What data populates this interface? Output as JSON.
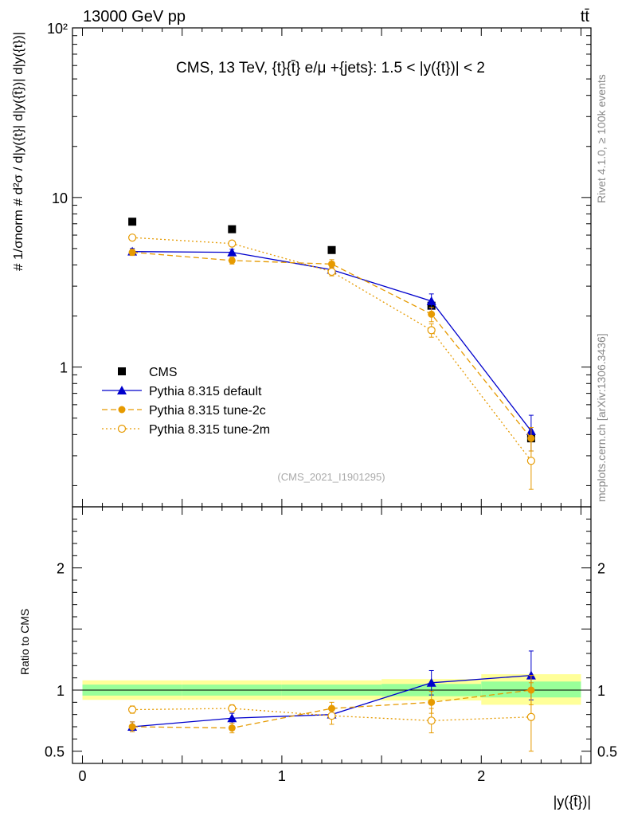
{
  "header": {
    "energy_label": "13000 GeV pp",
    "process_label": "tt̄"
  },
  "side": {
    "rivet_label": "Rivet 4.1.0, ≥ 100k events",
    "source_label": "mcplots.cern.ch [arXiv:1306.3436]"
  },
  "chart_data": [
    {
      "type": "line",
      "panel": "main",
      "title": "CMS, 13 TeV, {t}{t̄} e/μ +{jets}: 1.5 < |y({t})| < 2",
      "analysis_id": "(CMS_2021_I1901295)",
      "ylabel": "# 1/σnorm # d²σ / d|y({t}| d|y({t̄})| d|y({t})|",
      "yscale": "log",
      "ylim": [
        0.15,
        100
      ],
      "xlim": [
        -0.05,
        2.55
      ],
      "ytick_labels": [
        {
          "value": 1,
          "label": "1"
        },
        {
          "value": 10,
          "label": "10"
        },
        {
          "value": 100,
          "label": "10²"
        }
      ],
      "legend": [
        {
          "name": "CMS",
          "marker": "square",
          "color": "#000000",
          "line": "none"
        },
        {
          "name": "Pythia 8.315 default",
          "marker": "triangle",
          "color": "#0000cc",
          "line": "solid"
        },
        {
          "name": "Pythia 8.315 tune-2c",
          "marker": "circle",
          "color": "#e69a00",
          "line": "dashed"
        },
        {
          "name": "Pythia 8.315 tune-2m",
          "marker": "open-circle",
          "color": "#e69a00",
          "line": "dotted"
        }
      ],
      "x": [
        0.25,
        0.75,
        1.25,
        1.75,
        2.25
      ],
      "series": [
        {
          "name": "CMS",
          "values": [
            7.2,
            6.5,
            4.9,
            2.3,
            0.38
          ],
          "err": [
            0,
            0,
            0,
            0,
            0
          ]
        },
        {
          "name": "Pythia 8.315 default",
          "values": [
            4.8,
            4.75,
            3.75,
            2.45,
            0.42
          ],
          "err": [
            0.2,
            0.2,
            0.15,
            0.25,
            0.1
          ]
        },
        {
          "name": "Pythia 8.315 tune-2c",
          "values": [
            4.75,
            4.25,
            4.05,
            2.05,
            0.38
          ],
          "err": [
            0.2,
            0.2,
            0.25,
            0.2,
            0.06
          ]
        },
        {
          "name": "Pythia 8.315 tune-2m",
          "values": [
            5.8,
            5.35,
            3.65,
            1.65,
            0.28
          ],
          "err": [
            0.15,
            0.2,
            0.2,
            0.15,
            0.09
          ]
        }
      ]
    },
    {
      "type": "line",
      "panel": "ratio",
      "ylabel": "Ratio to CMS",
      "xlabel": "|y({t̄})|",
      "ylim": [
        0.4,
        2.5
      ],
      "xlim": [
        -0.05,
        2.55
      ],
      "xtick_labels": [
        {
          "value": 0,
          "label": "0"
        },
        {
          "value": 1,
          "label": "1"
        },
        {
          "value": 2,
          "label": "2"
        }
      ],
      "ytick_labels": [
        {
          "value": 0.5,
          "label": "0.5"
        },
        {
          "value": 1,
          "label": "1"
        },
        {
          "value": 2,
          "label": "2"
        }
      ],
      "bands": [
        {
          "x_lo": 0,
          "x_hi": 0.5,
          "inner": [
            0.955,
            1.045
          ],
          "outer": [
            0.92,
            1.08
          ]
        },
        {
          "x_lo": 0.5,
          "x_hi": 1.0,
          "inner": [
            0.955,
            1.045
          ],
          "outer": [
            0.92,
            1.08
          ]
        },
        {
          "x_lo": 1.0,
          "x_hi": 1.5,
          "inner": [
            0.955,
            1.045
          ],
          "outer": [
            0.92,
            1.08
          ]
        },
        {
          "x_lo": 1.5,
          "x_hi": 2.0,
          "inner": [
            0.95,
            1.05
          ],
          "outer": [
            0.915,
            1.09
          ]
        },
        {
          "x_lo": 2.0,
          "x_hi": 2.5,
          "inner": [
            0.94,
            1.07
          ],
          "outer": [
            0.88,
            1.13
          ]
        }
      ],
      "x": [
        0.25,
        0.75,
        1.25,
        1.75,
        2.25
      ],
      "series": [
        {
          "name": "Pythia 8.315 default",
          "values": [
            0.7,
            0.77,
            0.8,
            1.06,
            1.12
          ],
          "err": [
            0.04,
            0.04,
            0.03,
            0.1,
            0.2
          ]
        },
        {
          "name": "Pythia 8.315 tune-2c",
          "values": [
            0.7,
            0.69,
            0.85,
            0.9,
            1.0
          ],
          "err": [
            0.04,
            0.04,
            0.05,
            0.09,
            0.12
          ]
        },
        {
          "name": "Pythia 8.315 tune-2m",
          "values": [
            0.84,
            0.85,
            0.79,
            0.75,
            0.78
          ],
          "err": [
            0.03,
            0.03,
            0.07,
            0.1,
            0.28
          ]
        }
      ]
    }
  ]
}
